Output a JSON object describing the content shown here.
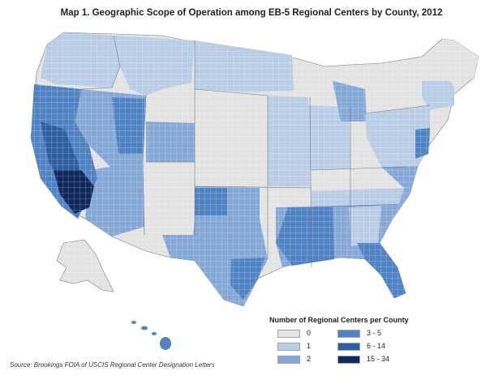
{
  "title": "Map 1. Geographic Scope of Operation among EB-5 Regional Centers by County, 2012",
  "legend": {
    "title": "Number of Regional Centers per County",
    "items": [
      {
        "label": "0",
        "color": "#e3e3e3"
      },
      {
        "label": "1",
        "color": "#b9cde6"
      },
      {
        "label": "2",
        "color": "#86a8d6"
      },
      {
        "label": "3 - 5",
        "color": "#4f83c4"
      },
      {
        "label": "6 - 14",
        "color": "#2e5f9e"
      },
      {
        "label": "15 - 34",
        "color": "#10295a"
      }
    ]
  },
  "source": "Source: Brookings FOIA of USCIS Regional Center Designation Letters",
  "colors": {
    "c0": "#e3e3e3",
    "c1": "#b9cde6",
    "c2": "#86a8d6",
    "c3": "#4f83c4",
    "c4": "#2e5f9e",
    "c5": "#10295a",
    "state_border": "#6d7a86"
  }
}
